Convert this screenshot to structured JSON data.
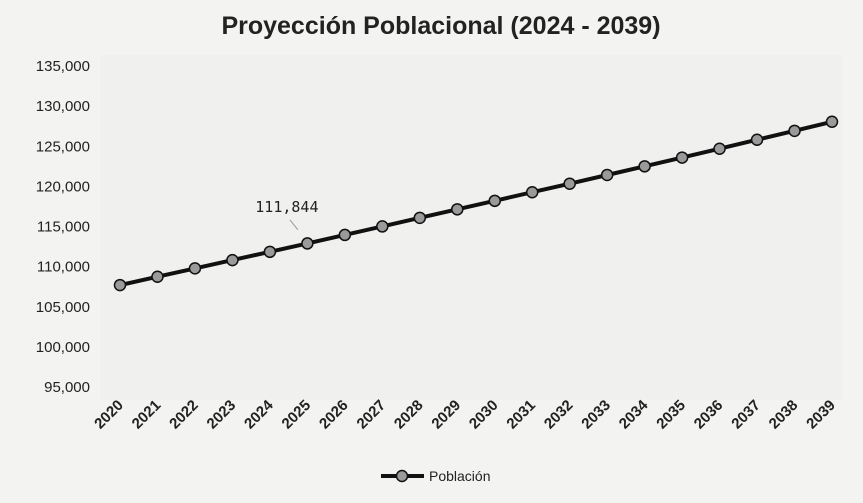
{
  "chart_data": {
    "type": "line",
    "title": "Proyección Poblacional (2024 - 2039)",
    "xlabel": "",
    "ylabel": "",
    "categories": [
      "2020",
      "2021",
      "2022",
      "2023",
      "2024",
      "2025",
      "2026",
      "2027",
      "2028",
      "2029",
      "2030",
      "2031",
      "2032",
      "2033",
      "2034",
      "2035",
      "2036",
      "2037",
      "2038",
      "2039"
    ],
    "series": [
      {
        "name": "Población",
        "color": "#111111",
        "marker_color": "#9a9a9a",
        "values": [
          107700,
          108740,
          109780,
          110810,
          111844,
          112890,
          113950,
          115010,
          116080,
          117140,
          118200,
          119270,
          120330,
          121420,
          122500,
          123590,
          124690,
          125810,
          126920,
          128050
        ]
      }
    ],
    "ylim": [
      95000,
      135000
    ],
    "yticks": [
      95000,
      100000,
      105000,
      110000,
      115000,
      120000,
      125000,
      130000,
      135000
    ],
    "ytick_labels": [
      "95,000",
      "100,000",
      "105,000",
      "110,000",
      "115,000",
      "120,000",
      "125,000",
      "130,000",
      "135,000"
    ],
    "annotations": [
      {
        "text": "111,844",
        "category": "2024",
        "value": 111844
      }
    ],
    "grid": false,
    "legend": "bottom"
  }
}
